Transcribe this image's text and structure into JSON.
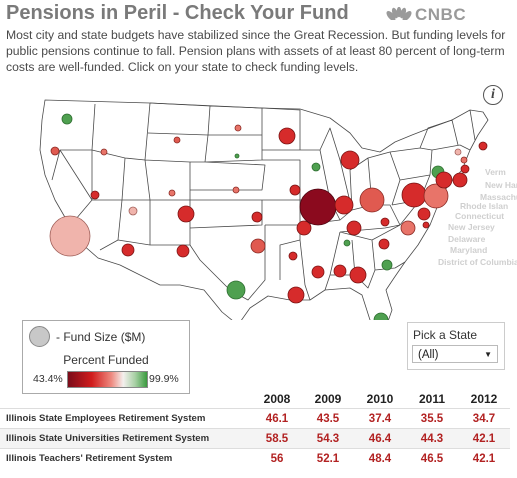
{
  "header": {
    "title": "Pensions in Peril - Check Your Fund",
    "logo_text": "CNBC",
    "intro": "Most city and state budgets have stabilized since the Great Recession. But funding levels for public pensions continue to fall. Pension plans with assets of at least 80 percent of long-term costs are well-funded. Click on your state to check funding levels."
  },
  "info_icon": "i",
  "map": {
    "state_labels": [
      "Verm",
      "New Ham",
      "Massachu",
      "Rhode Islan",
      "Connecticut",
      "New Jersey",
      "Delaware",
      "Maryland",
      "District of Columbia"
    ],
    "colors": {
      "dark_red": "#8b0a1e",
      "red": "#d62b2b",
      "light_red": "#e87469",
      "pink": "#f0b4ac",
      "green": "#4fa050",
      "gray": "#d8d8d8"
    }
  },
  "legend": {
    "size_label": "- Fund Size ($M)",
    "title": "Percent Funded",
    "min": "43.4%",
    "max": "99.9%"
  },
  "picker": {
    "label": "Pick a State",
    "selected": "(All)"
  },
  "table": {
    "years": [
      "2008",
      "2009",
      "2010",
      "2011",
      "2012"
    ],
    "rows": [
      {
        "name": "Illinois State Employees Retirement System",
        "values": [
          "46.1",
          "43.5",
          "37.4",
          "35.5",
          "34.7"
        ]
      },
      {
        "name": "Illinois State Universities Retirement System",
        "values": [
          "58.5",
          "54.3",
          "46.4",
          "44.3",
          "42.1"
        ]
      },
      {
        "name": "Illinois Teachers' Retirement System",
        "values": [
          "56",
          "52.1",
          "48.4",
          "46.5",
          "42.1"
        ]
      }
    ]
  }
}
